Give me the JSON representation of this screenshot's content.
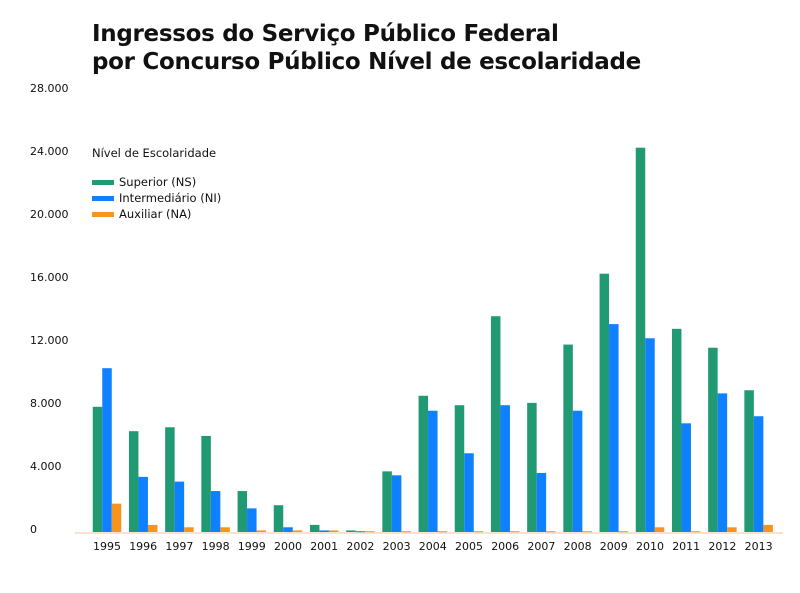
{
  "chart_data": {
    "type": "bar",
    "title_line1": "Ingressos do Serviço Público Federal",
    "title_line2": "por Concurso Público Nível de escolaridade",
    "legend_title": "Nível de Escolaridade",
    "legend_placement": "top-left",
    "categories": [
      "1995",
      "1996",
      "1997",
      "1998",
      "1999",
      "2000",
      "2001",
      "2002",
      "2003",
      "2004",
      "2005",
      "2006",
      "2007",
      "2008",
      "2009",
      "2010",
      "2011",
      "2012",
      "2013"
    ],
    "series": [
      {
        "name": "Superior (NS)",
        "color": "#219a73",
        "values": [
          7950,
          6400,
          6650,
          6100,
          2600,
          1700,
          450,
          100,
          3850,
          8650,
          8050,
          13700,
          8200,
          11900,
          16400,
          24400,
          12900,
          11700,
          9000
        ]
      },
      {
        "name": "Intermediário (NI)",
        "color": "#0f80ff",
        "values": [
          10400,
          3500,
          3200,
          2600,
          1500,
          300,
          100,
          50,
          3600,
          7700,
          5000,
          8050,
          3750,
          7700,
          13200,
          12300,
          6900,
          8800,
          7350
        ]
      },
      {
        "name": "Auxiliar (NA)",
        "color": "#f7941d",
        "values": [
          1800,
          450,
          300,
          300,
          100,
          100,
          100,
          50,
          50,
          50,
          50,
          50,
          50,
          50,
          50,
          300,
          50,
          300,
          450
        ]
      }
    ],
    "ylim": [
      0,
      28000
    ],
    "yticks": [
      0,
      4000,
      8000,
      12000,
      16000,
      20000,
      24000,
      28000
    ],
    "ytick_labels": [
      "0",
      "4.000",
      "8.000",
      "12.000",
      "16.000",
      "20.000",
      "24.000",
      "28.000"
    ],
    "grid": false
  }
}
